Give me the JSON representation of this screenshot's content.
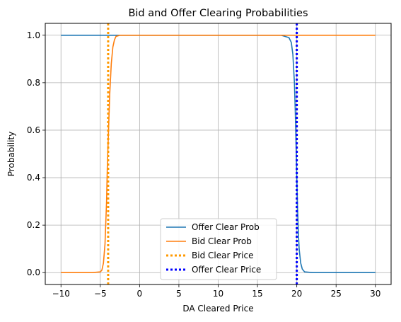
{
  "chart_data": {
    "type": "line",
    "title": "Bid and Offer Clearing Probabilities",
    "xlabel": "DA Cleared Price",
    "ylabel": "Probability",
    "xlim": [
      -12,
      32
    ],
    "ylim": [
      -0.05,
      1.05
    ],
    "xticks": [
      -10,
      -5,
      0,
      5,
      10,
      15,
      20,
      25,
      30
    ],
    "xtick_labels": [
      "−10",
      "−5",
      "0",
      "5",
      "10",
      "15",
      "20",
      "25",
      "30"
    ],
    "yticks": [
      0.0,
      0.2,
      0.4,
      0.6,
      0.8,
      1.0
    ],
    "ytick_labels": [
      "0.0",
      "0.2",
      "0.4",
      "0.6",
      "0.8",
      "1.0"
    ],
    "grid": true,
    "legend_position": "lower center",
    "series": [
      {
        "name": "Offer Clear Prob",
        "color": "#1f77b4",
        "style": "solid",
        "x": [
          -10,
          -5,
          0,
          5,
          10,
          15,
          18,
          19,
          19.3,
          19.5,
          19.7,
          19.8,
          19.9,
          20.0,
          20.1,
          20.2,
          20.3,
          20.5,
          20.7,
          21.0,
          22,
          25,
          30
        ],
        "y": [
          1.0,
          1.0,
          1.0,
          1.0,
          1.0,
          1.0,
          1.0,
          0.99,
          0.97,
          0.92,
          0.8,
          0.69,
          0.55,
          0.4,
          0.27,
          0.17,
          0.1,
          0.04,
          0.015,
          0.003,
          0.0,
          0.0,
          0.0
        ]
      },
      {
        "name": "Bid Clear Prob",
        "color": "#ff7f0e",
        "style": "solid",
        "x": [
          -10,
          -6,
          -5,
          -4.8,
          -4.6,
          -4.4,
          -4.2,
          -4.1,
          -4.0,
          -3.9,
          -3.8,
          -3.6,
          -3.4,
          -3.2,
          -3.0,
          -2.5,
          0,
          5,
          10,
          15,
          20,
          25,
          30
        ],
        "y": [
          0.0,
          0.0,
          0.003,
          0.01,
          0.04,
          0.12,
          0.3,
          0.45,
          0.55,
          0.65,
          0.75,
          0.88,
          0.95,
          0.98,
          0.995,
          1.0,
          1.0,
          1.0,
          1.0,
          1.0,
          1.0,
          1.0,
          1.0
        ]
      },
      {
        "name": "Bid Clear Price",
        "color": "#ff9900",
        "style": "dotted",
        "vline_x": -4.0
      },
      {
        "name": "Offer Clear Price",
        "color": "#0000ff",
        "style": "dotted",
        "vline_x": 20.0
      }
    ]
  }
}
